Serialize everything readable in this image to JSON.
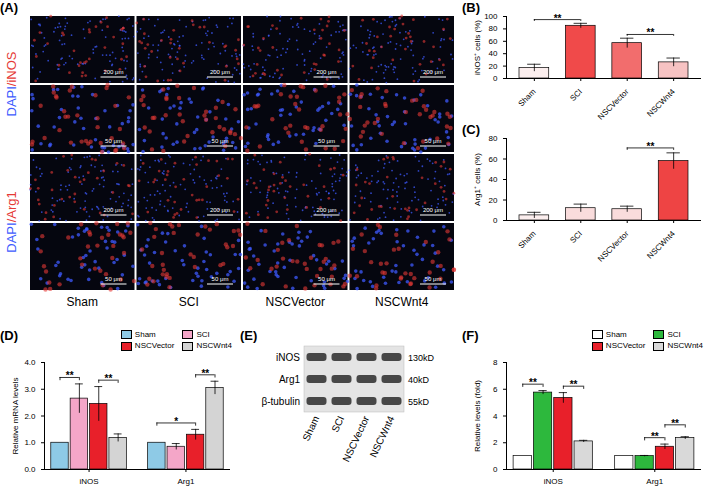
{
  "chart_data": [
    {
      "panel_label": "(B)",
      "type": "bar",
      "categories": [
        "Sham",
        "SCI",
        "NSCVector",
        "NSCWnt4"
      ],
      "values": [
        17,
        85,
        57,
        26
      ],
      "errors": [
        6,
        4,
        8,
        7
      ],
      "colors": [
        "#fbeeee",
        "#f04a4a",
        "#f26d6d",
        "#f7c3c3"
      ],
      "y_label": "iNOS⁺ cells (%)",
      "ylim": [
        0,
        100
      ],
      "yticks": [
        0,
        20,
        40,
        60,
        80,
        100
      ],
      "annotations": [
        {
          "from": "Sham",
          "to": "SCI",
          "text": "**"
        },
        {
          "from": "NSCVector",
          "to": "NSCWnt4",
          "text": "**"
        }
      ]
    },
    {
      "panel_label": "(C)",
      "type": "bar",
      "categories": [
        "Sham",
        "SCI",
        "NSCVector",
        "NSCWnt4"
      ],
      "values": [
        5,
        12,
        11,
        58
      ],
      "errors": [
        3,
        4,
        3,
        8
      ],
      "colors": [
        "#fbeeee",
        "#f9dcdc",
        "#f9dcdc",
        "#ee4444"
      ],
      "y_label": "Arg1⁺ cells (%)",
      "ylim": [
        0,
        80
      ],
      "yticks": [
        0,
        20,
        40,
        60,
        80
      ],
      "annotations": [
        {
          "from": "NSCVector",
          "to": "NSCWnt4",
          "text": "**"
        }
      ]
    },
    {
      "panel_label": "(D)",
      "type": "bar",
      "categories": [
        "iNOS",
        "Arg1"
      ],
      "series": [
        {
          "name": "Sham",
          "color": "#8ecae6",
          "values": [
            1,
            1
          ],
          "errors": [
            0,
            0
          ]
        },
        {
          "name": "SCI",
          "color": "#f4a6c8",
          "values": [
            2.65,
            0.85
          ],
          "errors": [
            0.55,
            0.12
          ]
        },
        {
          "name": "NSCVector",
          "color": "#e8202a",
          "values": [
            2.45,
            1.3
          ],
          "errors": [
            0.65,
            0.2
          ]
        },
        {
          "name": "NSCWnt4",
          "color": "#d4d4d4",
          "values": [
            1.18,
            3.05
          ],
          "errors": [
            0.15,
            0.25
          ]
        }
      ],
      "y_label": "Relative mRNA levels",
      "ylim": [
        0,
        4
      ],
      "yticks": [
        0,
        1,
        2,
        3,
        4
      ],
      "legend": "top-right",
      "annotations": [
        {
          "category": "iNOS",
          "from": "Sham",
          "to": "SCI",
          "text": "**"
        },
        {
          "category": "iNOS",
          "from": "NSCVector",
          "to": "NSCWnt4",
          "text": "**"
        },
        {
          "category": "Arg1",
          "from": "Sham",
          "to": "NSCVector",
          "text": "*"
        },
        {
          "category": "Arg1",
          "from": "NSCVector",
          "to": "NSCWnt4",
          "text": "**"
        }
      ]
    },
    {
      "panel_label": "(F)",
      "type": "bar",
      "categories": [
        "iNOS",
        "Arg1"
      ],
      "series": [
        {
          "name": "Sham",
          "color": "#ffffff",
          "values": [
            1,
            1
          ],
          "errors": [
            0,
            0
          ]
        },
        {
          "name": "SCI",
          "color": "#2db83d",
          "values": [
            5.75,
            1.0
          ],
          "errors": [
            0.15,
            0.05
          ]
        },
        {
          "name": "NSCVector",
          "color": "#e8202a",
          "values": [
            5.35,
            1.7
          ],
          "errors": [
            0.4,
            0.2
          ]
        },
        {
          "name": "NSCWnt4",
          "color": "#d9d9d9",
          "values": [
            2.1,
            2.35
          ],
          "errors": [
            0.08,
            0.1
          ]
        }
      ],
      "y_label": "Relative levels (fold)",
      "ylim": [
        0,
        8
      ],
      "yticks": [
        0,
        2,
        4,
        6,
        8
      ],
      "legend": "top-right",
      "annotations": [
        {
          "category": "iNOS",
          "from": "Sham",
          "to": "SCI",
          "text": "**"
        },
        {
          "category": "iNOS",
          "from": "NSCVector",
          "to": "NSCWnt4",
          "text": "**"
        },
        {
          "category": "Arg1",
          "from": "SCI",
          "to": "NSCVector",
          "text": "**"
        },
        {
          "category": "Arg1",
          "from": "NSCVector",
          "to": "NSCWnt4",
          "text": "**"
        }
      ]
    }
  ],
  "image_panel": {
    "panel_label": "(A)",
    "row_labels": [
      {
        "parts": [
          {
            "text": "DAPI",
            "color": "#3d5afe"
          },
          {
            "text": "/iNOS",
            "color": "#e53935"
          }
        ]
      },
      {
        "parts": [
          {
            "text": "DAPI",
            "color": "#3d5afe"
          },
          {
            "text": "/Arg1",
            "color": "#e53935"
          }
        ]
      }
    ],
    "scale_bars": [
      "200 μm",
      "50 μm",
      "200 μm",
      "50 μm"
    ],
    "columns": [
      "Sham",
      "SCI",
      "NSCVector",
      "NSCWnt4"
    ]
  },
  "blot": {
    "panel_label": "(E)",
    "rows": [
      "iNOS",
      "Arg1",
      "β-tubulin"
    ],
    "sizes": [
      "130kD",
      "40kD",
      "55kD"
    ],
    "lanes": [
      "Sham",
      "SCI",
      "NSCVector",
      "NSCWnt4"
    ]
  }
}
